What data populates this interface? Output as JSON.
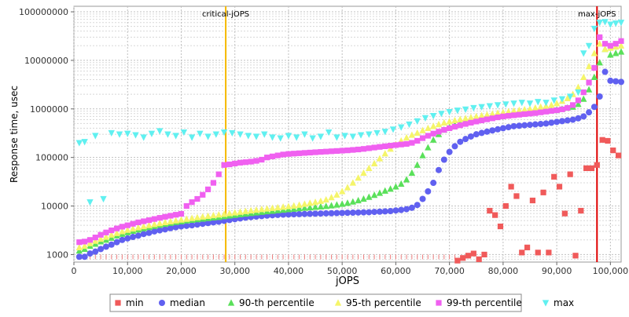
{
  "chart_data": {
    "type": "scatter",
    "xlabel": "jOPS",
    "ylabel": "Response time, usec",
    "xlim": [
      0,
      102000
    ],
    "ylim": [
      700,
      130000000
    ],
    "yscale": "log",
    "grid": true,
    "legend_position": "bottom",
    "x_ticks": [
      0,
      10000,
      20000,
      30000,
      40000,
      50000,
      60000,
      70000,
      80000,
      90000,
      100000
    ],
    "x_tick_labels": [
      "0",
      "10,000",
      "20,000",
      "30,000",
      "40,000",
      "50,000",
      "60,000",
      "70,000",
      "80,000",
      "90,000",
      "100,000"
    ],
    "y_ticks": [
      1000,
      10000,
      100000,
      1000000,
      10000000,
      100000000
    ],
    "y_tick_labels": [
      "1000",
      "10000",
      "100000",
      "1000000",
      "10000000",
      "100000000"
    ],
    "annotations": [
      {
        "label": "critical-jOPS",
        "x": 28300,
        "color": "#f5b800"
      },
      {
        "label": "max-jOPS",
        "x": 97500,
        "color": "#e00000"
      }
    ],
    "x": [
      1000,
      2000,
      3000,
      4000,
      5000,
      6000,
      7000,
      8000,
      9000,
      10000,
      11000,
      12000,
      13000,
      14000,
      15000,
      16000,
      17000,
      18000,
      19000,
      20000,
      21000,
      22000,
      23000,
      24000,
      25000,
      26000,
      27000,
      28000,
      29000,
      30000,
      31000,
      32000,
      33000,
      34000,
      35000,
      36000,
      37000,
      38000,
      39000,
      40000,
      41000,
      42000,
      43000,
      44000,
      45000,
      46000,
      47000,
      48000,
      49000,
      50000,
      51000,
      52000,
      53000,
      54000,
      55000,
      56000,
      57000,
      58000,
      59000,
      60000,
      61000,
      62000,
      63000,
      64000,
      65000,
      66000,
      67000,
      68000,
      69000,
      70000,
      71000,
      72000,
      73000,
      74000,
      75000,
      76000,
      77000,
      78000,
      79000,
      80000,
      81000,
      82000,
      83000,
      84000,
      85000,
      86000,
      87000,
      88000,
      89000,
      90000,
      91000,
      92000,
      93000,
      94000,
      95000,
      96000,
      97000,
      98000,
      99000,
      100000,
      101000,
      102000
    ],
    "series": [
      {
        "name": "min",
        "color": "#f05a5a",
        "marker": "square",
        "points": [
          [
            1000,
            1000
          ],
          [
            10000,
            1000
          ],
          [
            20000,
            1000
          ],
          [
            28000,
            1000
          ],
          [
            40000,
            1000
          ],
          [
            50000,
            1000
          ],
          [
            60000,
            1000
          ],
          [
            70000,
            1000
          ],
          [
            71500,
            750
          ],
          [
            72500,
            850
          ],
          [
            73500,
            950
          ],
          [
            74500,
            1050
          ],
          [
            75500,
            800
          ],
          [
            76500,
            1000
          ],
          [
            77500,
            8000
          ],
          [
            78500,
            6500
          ],
          [
            79500,
            3800
          ],
          [
            80500,
            10000
          ],
          [
            81500,
            25000
          ],
          [
            82500,
            16000
          ],
          [
            83500,
            1100
          ],
          [
            84500,
            1400
          ],
          [
            85500,
            13000
          ],
          [
            86500,
            1100
          ],
          [
            87500,
            19000
          ],
          [
            88500,
            1100
          ],
          [
            89500,
            40000
          ],
          [
            90500,
            25000
          ],
          [
            91500,
            7000
          ],
          [
            92500,
            45000
          ],
          [
            93500,
            950
          ],
          [
            94500,
            8000
          ],
          [
            95500,
            60000
          ],
          [
            96500,
            60000
          ],
          [
            97500,
            70000
          ],
          [
            98500,
            230000
          ],
          [
            99500,
            220000
          ],
          [
            100500,
            140000
          ],
          [
            101500,
            110000
          ]
        ]
      },
      {
        "name": "median",
        "color": "#6060f0",
        "marker": "circle",
        "values": [
          900,
          900,
          1050,
          1150,
          1300,
          1450,
          1600,
          1800,
          2000,
          2150,
          2300,
          2450,
          2650,
          2800,
          3000,
          3150,
          3300,
          3500,
          3650,
          3800,
          3900,
          4000,
          4150,
          4300,
          4450,
          4600,
          4750,
          4950,
          5150,
          5350,
          5550,
          5750,
          5900,
          6050,
          6200,
          6350,
          6450,
          6550,
          6650,
          6700,
          6750,
          6800,
          6850,
          6900,
          6950,
          7000,
          7050,
          7100,
          7150,
          7200,
          7250,
          7300,
          7350,
          7400,
          7450,
          7550,
          7650,
          7750,
          7850,
          8100,
          8300,
          8600,
          9200,
          10500,
          14000,
          20000,
          30000,
          55000,
          90000,
          130000,
          170000,
          210000,
          240000,
          270000,
          300000,
          320000,
          340000,
          360000,
          380000,
          400000,
          420000,
          440000,
          450000,
          460000,
          470000,
          480000,
          490000,
          500000,
          520000,
          540000,
          560000,
          580000,
          600000,
          640000,
          700000,
          850000,
          1100000,
          1800000,
          5800000,
          3800000,
          3700000,
          3600000
        ]
      },
      {
        "name": "90-th percentile",
        "color": "#5ae05a",
        "marker": "triangle-up",
        "values": [
          1200,
          1300,
          1500,
          1650,
          1850,
          2000,
          2200,
          2450,
          2650,
          2850,
          3050,
          3250,
          3450,
          3650,
          3850,
          4050,
          4250,
          4450,
          4650,
          4800,
          5000,
          5150,
          5300,
          5450,
          5600,
          5750,
          5900,
          6100,
          6300,
          6500,
          6700,
          6900,
          7100,
          7300,
          7500,
          7700,
          7900,
          8100,
          8300,
          8500,
          8700,
          8900,
          9100,
          9300,
          9500,
          9700,
          9900,
          10200,
          10600,
          11000,
          11500,
          12200,
          13000,
          14000,
          15300,
          16800,
          18500,
          20500,
          22500,
          25000,
          28500,
          35000,
          48000,
          70000,
          110000,
          160000,
          230000,
          300000,
          370000,
          420000,
          470000,
          510000,
          550000,
          580000,
          610000,
          640000,
          670000,
          700000,
          720000,
          740000,
          760000,
          780000,
          800000,
          820000,
          840000,
          860000,
          880000,
          900000,
          930000,
          960000,
          1000000,
          1050000,
          1100000,
          1250000,
          1600000,
          2500000,
          4500000,
          9000000,
          17000000,
          13000000,
          14000000,
          15000000
        ]
      },
      {
        "name": "95-th percentile",
        "color": "#f5f56a",
        "marker": "triangle-up",
        "values": [
          1400,
          1500,
          1700,
          1900,
          2100,
          2300,
          2550,
          2750,
          3000,
          3200,
          3400,
          3600,
          3800,
          4000,
          4200,
          4400,
          4600,
          4800,
          5000,
          5200,
          5400,
          5600,
          5800,
          6000,
          6200,
          6400,
          6600,
          6800,
          7050,
          7300,
          7550,
          7800,
          8050,
          8300,
          8550,
          8800,
          9050,
          9300,
          9550,
          9800,
          10100,
          10500,
          11000,
          11500,
          12000,
          12600,
          13500,
          15000,
          17000,
          20000,
          24000,
          30000,
          38000,
          48000,
          60000,
          75000,
          95000,
          120000,
          150000,
          185000,
          220000,
          255000,
          290000,
          320000,
          360000,
          400000,
          440000,
          480000,
          520000,
          550000,
          580000,
          610000,
          640000,
          670000,
          700000,
          730000,
          760000,
          790000,
          820000,
          850000,
          880000,
          910000,
          940000,
          970000,
          1000000,
          1050000,
          1100000,
          1150000,
          1200000,
          1300000,
          1450000,
          1650000,
          2000000,
          2800000,
          4500000,
          7500000,
          14000000,
          22000000,
          17000000,
          18000000,
          19000000,
          20000000
        ]
      },
      {
        "name": "99-th percentile",
        "color": "#f060f0",
        "marker": "square",
        "values": [
          1800,
          1850,
          2000,
          2250,
          2550,
          2850,
          3150,
          3450,
          3750,
          4000,
          4300,
          4600,
          4850,
          5100,
          5400,
          5700,
          6000,
          6300,
          6600,
          6900,
          10000,
          12000,
          14000,
          17000,
          22000,
          30000,
          45000,
          70000,
          72000,
          75000,
          78000,
          80000,
          82000,
          85000,
          90000,
          100000,
          105000,
          110000,
          115000,
          118000,
          120000,
          122000,
          124000,
          126000,
          128000,
          130000,
          132000,
          134000,
          136000,
          138000,
          140000,
          143000,
          146000,
          150000,
          155000,
          160000,
          165000,
          170000,
          175000,
          180000,
          185000,
          190000,
          200000,
          220000,
          250000,
          280000,
          310000,
          340000,
          370000,
          400000,
          430000,
          460000,
          490000,
          520000,
          550000,
          580000,
          610000,
          640000,
          670000,
          700000,
          720000,
          740000,
          760000,
          780000,
          800000,
          820000,
          850000,
          880000,
          910000,
          940000,
          980000,
          1050000,
          1200000,
          1500000,
          2200000,
          3500000,
          7000000,
          30000000,
          22000000,
          20000000,
          22000000,
          25000000
        ]
      },
      {
        "name": "max",
        "color": "#60f0f0",
        "marker": "triangle-down",
        "points": [
          [
            1000,
            200000
          ],
          [
            2000,
            210000
          ],
          [
            3000,
            12000
          ],
          [
            4000,
            280000
          ],
          [
            5500,
            14000
          ],
          [
            7000,
            320000
          ],
          [
            8500,
            300000
          ],
          [
            10000,
            310000
          ],
          [
            11500,
            290000
          ],
          [
            13000,
            260000
          ],
          [
            14500,
            310000
          ],
          [
            16000,
            350000
          ],
          [
            17500,
            300000
          ],
          [
            19000,
            280000
          ],
          [
            20500,
            330000
          ],
          [
            22000,
            260000
          ],
          [
            23500,
            310000
          ],
          [
            25000,
            270000
          ],
          [
            26500,
            300000
          ],
          [
            28000,
            330000
          ],
          [
            29500,
            320000
          ],
          [
            31000,
            300000
          ],
          [
            32500,
            280000
          ],
          [
            34000,
            270000
          ],
          [
            35500,
            300000
          ],
          [
            37000,
            260000
          ],
          [
            38500,
            250000
          ],
          [
            40000,
            280000
          ],
          [
            41500,
            260000
          ],
          [
            43000,
            300000
          ],
          [
            44500,
            250000
          ],
          [
            46000,
            270000
          ],
          [
            47500,
            330000
          ],
          [
            49000,
            260000
          ],
          [
            50500,
            280000
          ],
          [
            52000,
            270000
          ],
          [
            53500,
            290000
          ],
          [
            55000,
            300000
          ],
          [
            56500,
            320000
          ],
          [
            58000,
            340000
          ],
          [
            59500,
            380000
          ],
          [
            61000,
            420000
          ],
          [
            62500,
            480000
          ],
          [
            64000,
            560000
          ],
          [
            65500,
            650000
          ],
          [
            67000,
            720000
          ],
          [
            68500,
            800000
          ],
          [
            70000,
            870000
          ],
          [
            71500,
            930000
          ],
          [
            73000,
            980000
          ],
          [
            74500,
            1050000
          ],
          [
            76000,
            1100000
          ],
          [
            77500,
            1150000
          ],
          [
            79000,
            1200000
          ],
          [
            80500,
            1250000
          ],
          [
            82000,
            1300000
          ],
          [
            83500,
            1350000
          ],
          [
            85000,
            1300000
          ],
          [
            86500,
            1400000
          ],
          [
            88000,
            1350000
          ],
          [
            89500,
            1500000
          ],
          [
            91000,
            1600000
          ],
          [
            92500,
            1800000
          ],
          [
            94000,
            2200000
          ],
          [
            95000,
            14000000
          ],
          [
            96000,
            20000000
          ],
          [
            97000,
            45000000
          ],
          [
            98000,
            60000000
          ],
          [
            99000,
            62000000
          ],
          [
            100000,
            55000000
          ],
          [
            101000,
            58000000
          ],
          [
            102000,
            60000000
          ]
        ]
      }
    ]
  }
}
